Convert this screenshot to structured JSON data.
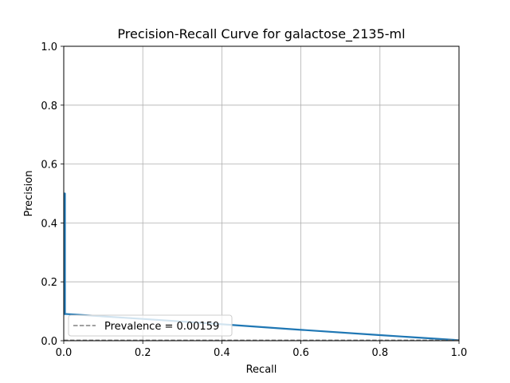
{
  "chart_data": {
    "type": "line",
    "title": "Precision-Recall Curve for galactose_2135-ml",
    "xlabel": "Recall",
    "ylabel": "Precision",
    "xlim": [
      0.0,
      1.0
    ],
    "ylim": [
      0.0,
      1.0
    ],
    "xticks": [
      "0.0",
      "0.2",
      "0.4",
      "0.6",
      "0.8",
      "1.0"
    ],
    "yticks": [
      "0.0",
      "0.2",
      "0.4",
      "0.6",
      "0.8",
      "1.0"
    ],
    "grid": true,
    "legend_position": "lower-left",
    "series": [
      {
        "color": "#1f77b4",
        "style": "solid",
        "x": [
          0.0,
          0.0,
          0.003,
          0.003,
          0.003,
          0.2,
          0.4,
          0.6,
          0.8,
          1.0
        ],
        "y": [
          0.5,
          0.5,
          0.5,
          0.09,
          0.091,
          0.074,
          0.056,
          0.037,
          0.019,
          0.00159
        ]
      },
      {
        "name": "Prevalence = 0.00159",
        "color": "#808080",
        "style": "dashed",
        "x": [
          0.0,
          1.0
        ],
        "y": [
          0.00159,
          0.00159
        ]
      }
    ]
  }
}
